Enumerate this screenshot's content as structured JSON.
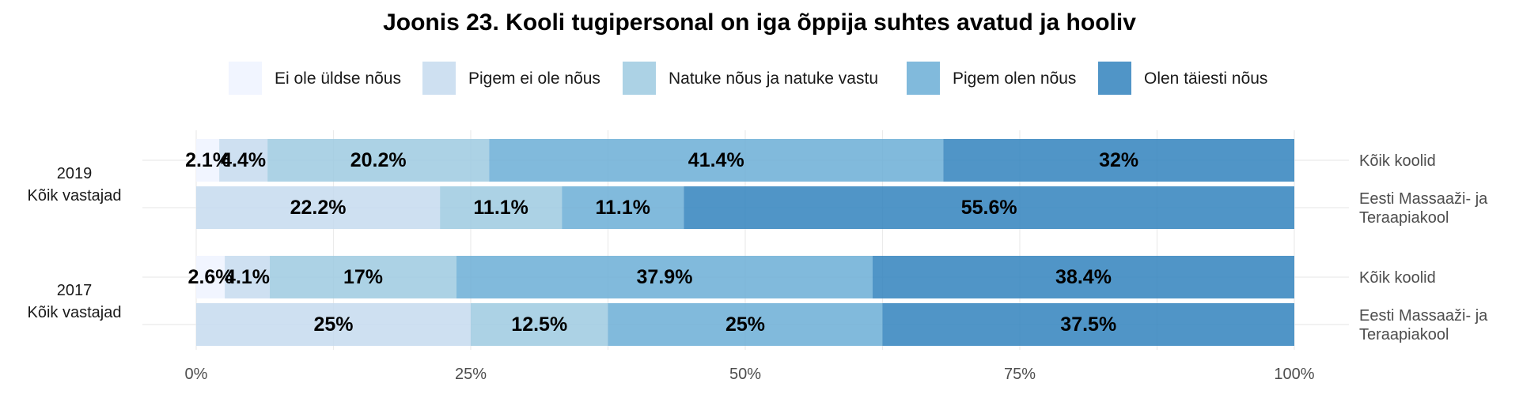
{
  "chart_data": {
    "type": "bar",
    "orientation": "horizontal",
    "stacked": "percent",
    "title": "Joonis 23. Kooli tugipersonal on iga õppija suhtes avatud ja hooliv",
    "legend": {
      "position": "top",
      "entries": [
        "Ei ole üldse nõus",
        "Pigem ei ole nõus",
        "Natuke nõus ja natuke vastu",
        "Pigem olen nõus",
        "Olen täiesti nõus"
      ]
    },
    "colors": [
      "#eff3ff",
      "#c6dbef",
      "#9ecae1",
      "#6baed6",
      "#3182bd"
    ],
    "x_ticks": [
      "0%",
      "25%",
      "50%",
      "75%",
      "100%"
    ],
    "xlim": [
      0,
      100
    ],
    "grid": true,
    "groups": [
      {
        "label_lines": [
          "2019",
          "Kõik vastajad"
        ],
        "rows": [
          {
            "label_lines": [
              "Kõik koolid"
            ],
            "values": [
              2.1,
              4.4,
              20.2,
              41.4,
              32
            ],
            "labels": [
              "2.1%",
              "4.4%",
              "20.2%",
              "41.4%",
              "32%"
            ]
          },
          {
            "label_lines": [
              "Eesti Massaaži- ja",
              "Teraapiakool"
            ],
            "values": [
              0,
              22.2,
              11.1,
              11.1,
              55.6
            ],
            "labels": [
              "",
              "22.2%",
              "11.1%",
              "11.1%",
              "55.6%"
            ]
          }
        ]
      },
      {
        "label_lines": [
          "2017",
          "Kõik vastajad"
        ],
        "rows": [
          {
            "label_lines": [
              "Kõik koolid"
            ],
            "values": [
              2.6,
              4.1,
              17,
              37.9,
              38.4
            ],
            "labels": [
              "2.6%",
              "4.1%",
              "17%",
              "37.9%",
              "38.4%"
            ]
          },
          {
            "label_lines": [
              "Eesti Massaaži- ja",
              "Teraapiakool"
            ],
            "values": [
              0,
              25,
              12.5,
              25,
              37.5
            ],
            "labels": [
              "",
              "25%",
              "12.5%",
              "25%",
              "37.5%"
            ]
          }
        ]
      }
    ]
  }
}
